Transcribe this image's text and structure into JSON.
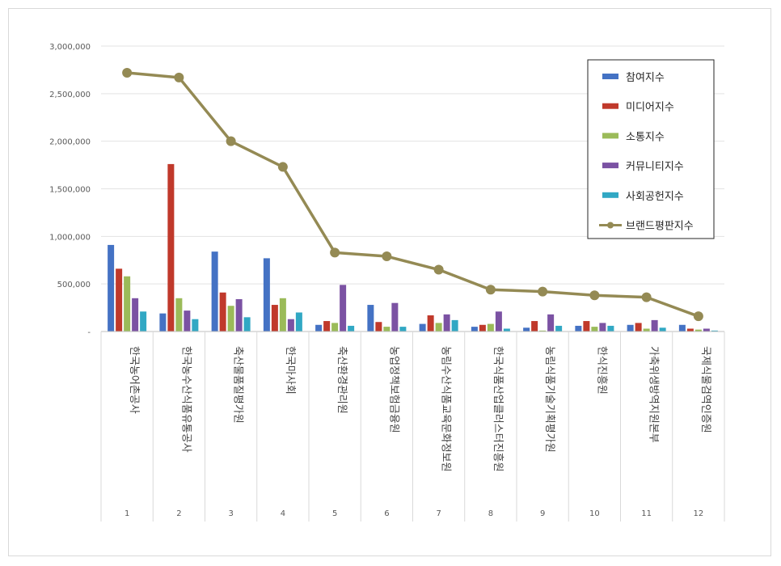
{
  "chart_data": {
    "type": "bar",
    "title": "",
    "xlabel": "",
    "ylabel": "",
    "ylim": [
      0,
      3000000
    ],
    "y_ticks": [
      0,
      500000,
      1000000,
      1500000,
      2000000,
      2500000,
      3000000
    ],
    "y_tick_labels": [
      "-",
      "500,000",
      "1,000,000",
      "1,500,000",
      "2,000,000",
      "2,500,000",
      "3,000,000"
    ],
    "grid": true,
    "legend_position": "top-right",
    "categories": [
      "한국농어촌공사",
      "한국농수산식품유통공사",
      "축산물품질평가원",
      "한국마사회",
      "축산환경관리원",
      "농업정책보험금융원",
      "농림수산식품교육문화정보원",
      "한국식품산업클러스터진흥원",
      "농림식품기술기획평가원",
      "한식진흥원",
      "가축위생방역지원본부",
      "국제식물검역인증원"
    ],
    "ranks": [
      "1",
      "2",
      "3",
      "4",
      "5",
      "6",
      "7",
      "8",
      "9",
      "10",
      "11",
      "12"
    ],
    "series": [
      {
        "name": "참여지수",
        "kind": "bar",
        "color": "#4472c4",
        "values": [
          910000,
          190000,
          840000,
          770000,
          70000,
          280000,
          80000,
          50000,
          40000,
          60000,
          70000,
          70000
        ]
      },
      {
        "name": "미디어지수",
        "kind": "bar",
        "color": "#c0392b",
        "values": [
          660000,
          1760000,
          410000,
          280000,
          110000,
          100000,
          170000,
          70000,
          110000,
          110000,
          90000,
          30000
        ]
      },
      {
        "name": "소통지수",
        "kind": "bar",
        "color": "#9bbb59",
        "values": [
          580000,
          350000,
          270000,
          350000,
          90000,
          50000,
          90000,
          80000,
          10000,
          50000,
          30000,
          20000
        ]
      },
      {
        "name": "커뮤니티지수",
        "kind": "bar",
        "color": "#7b52a3",
        "values": [
          350000,
          220000,
          340000,
          130000,
          490000,
          300000,
          180000,
          210000,
          180000,
          90000,
          120000,
          30000
        ]
      },
      {
        "name": "사회공헌지수",
        "kind": "bar",
        "color": "#31a8c4",
        "values": [
          210000,
          130000,
          150000,
          200000,
          60000,
          50000,
          120000,
          30000,
          60000,
          60000,
          40000,
          10000
        ]
      },
      {
        "name": "브랜드평판지수",
        "kind": "line",
        "color": "#948a54",
        "values": [
          2720000,
          2670000,
          2000000,
          1730000,
          830000,
          790000,
          650000,
          440000,
          420000,
          380000,
          360000,
          160000
        ]
      }
    ]
  }
}
